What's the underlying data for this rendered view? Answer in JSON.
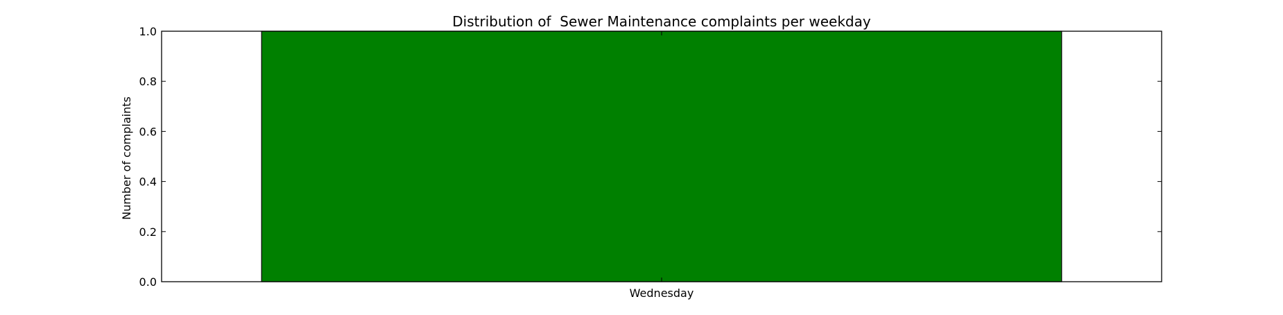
{
  "chart_data": {
    "type": "bar",
    "title": "Distribution of  Sewer Maintenance complaints per weekday",
    "xlabel": "",
    "ylabel": "Number of complaints",
    "categories": [
      "Wednesday"
    ],
    "values": [
      1.0
    ],
    "ylim": [
      0.0,
      1.0
    ],
    "yticks": [
      "0.0",
      "0.2",
      "0.4",
      "0.6",
      "0.8",
      "1.0"
    ],
    "bar_color": "#008000",
    "grid": false,
    "legend": "none"
  }
}
